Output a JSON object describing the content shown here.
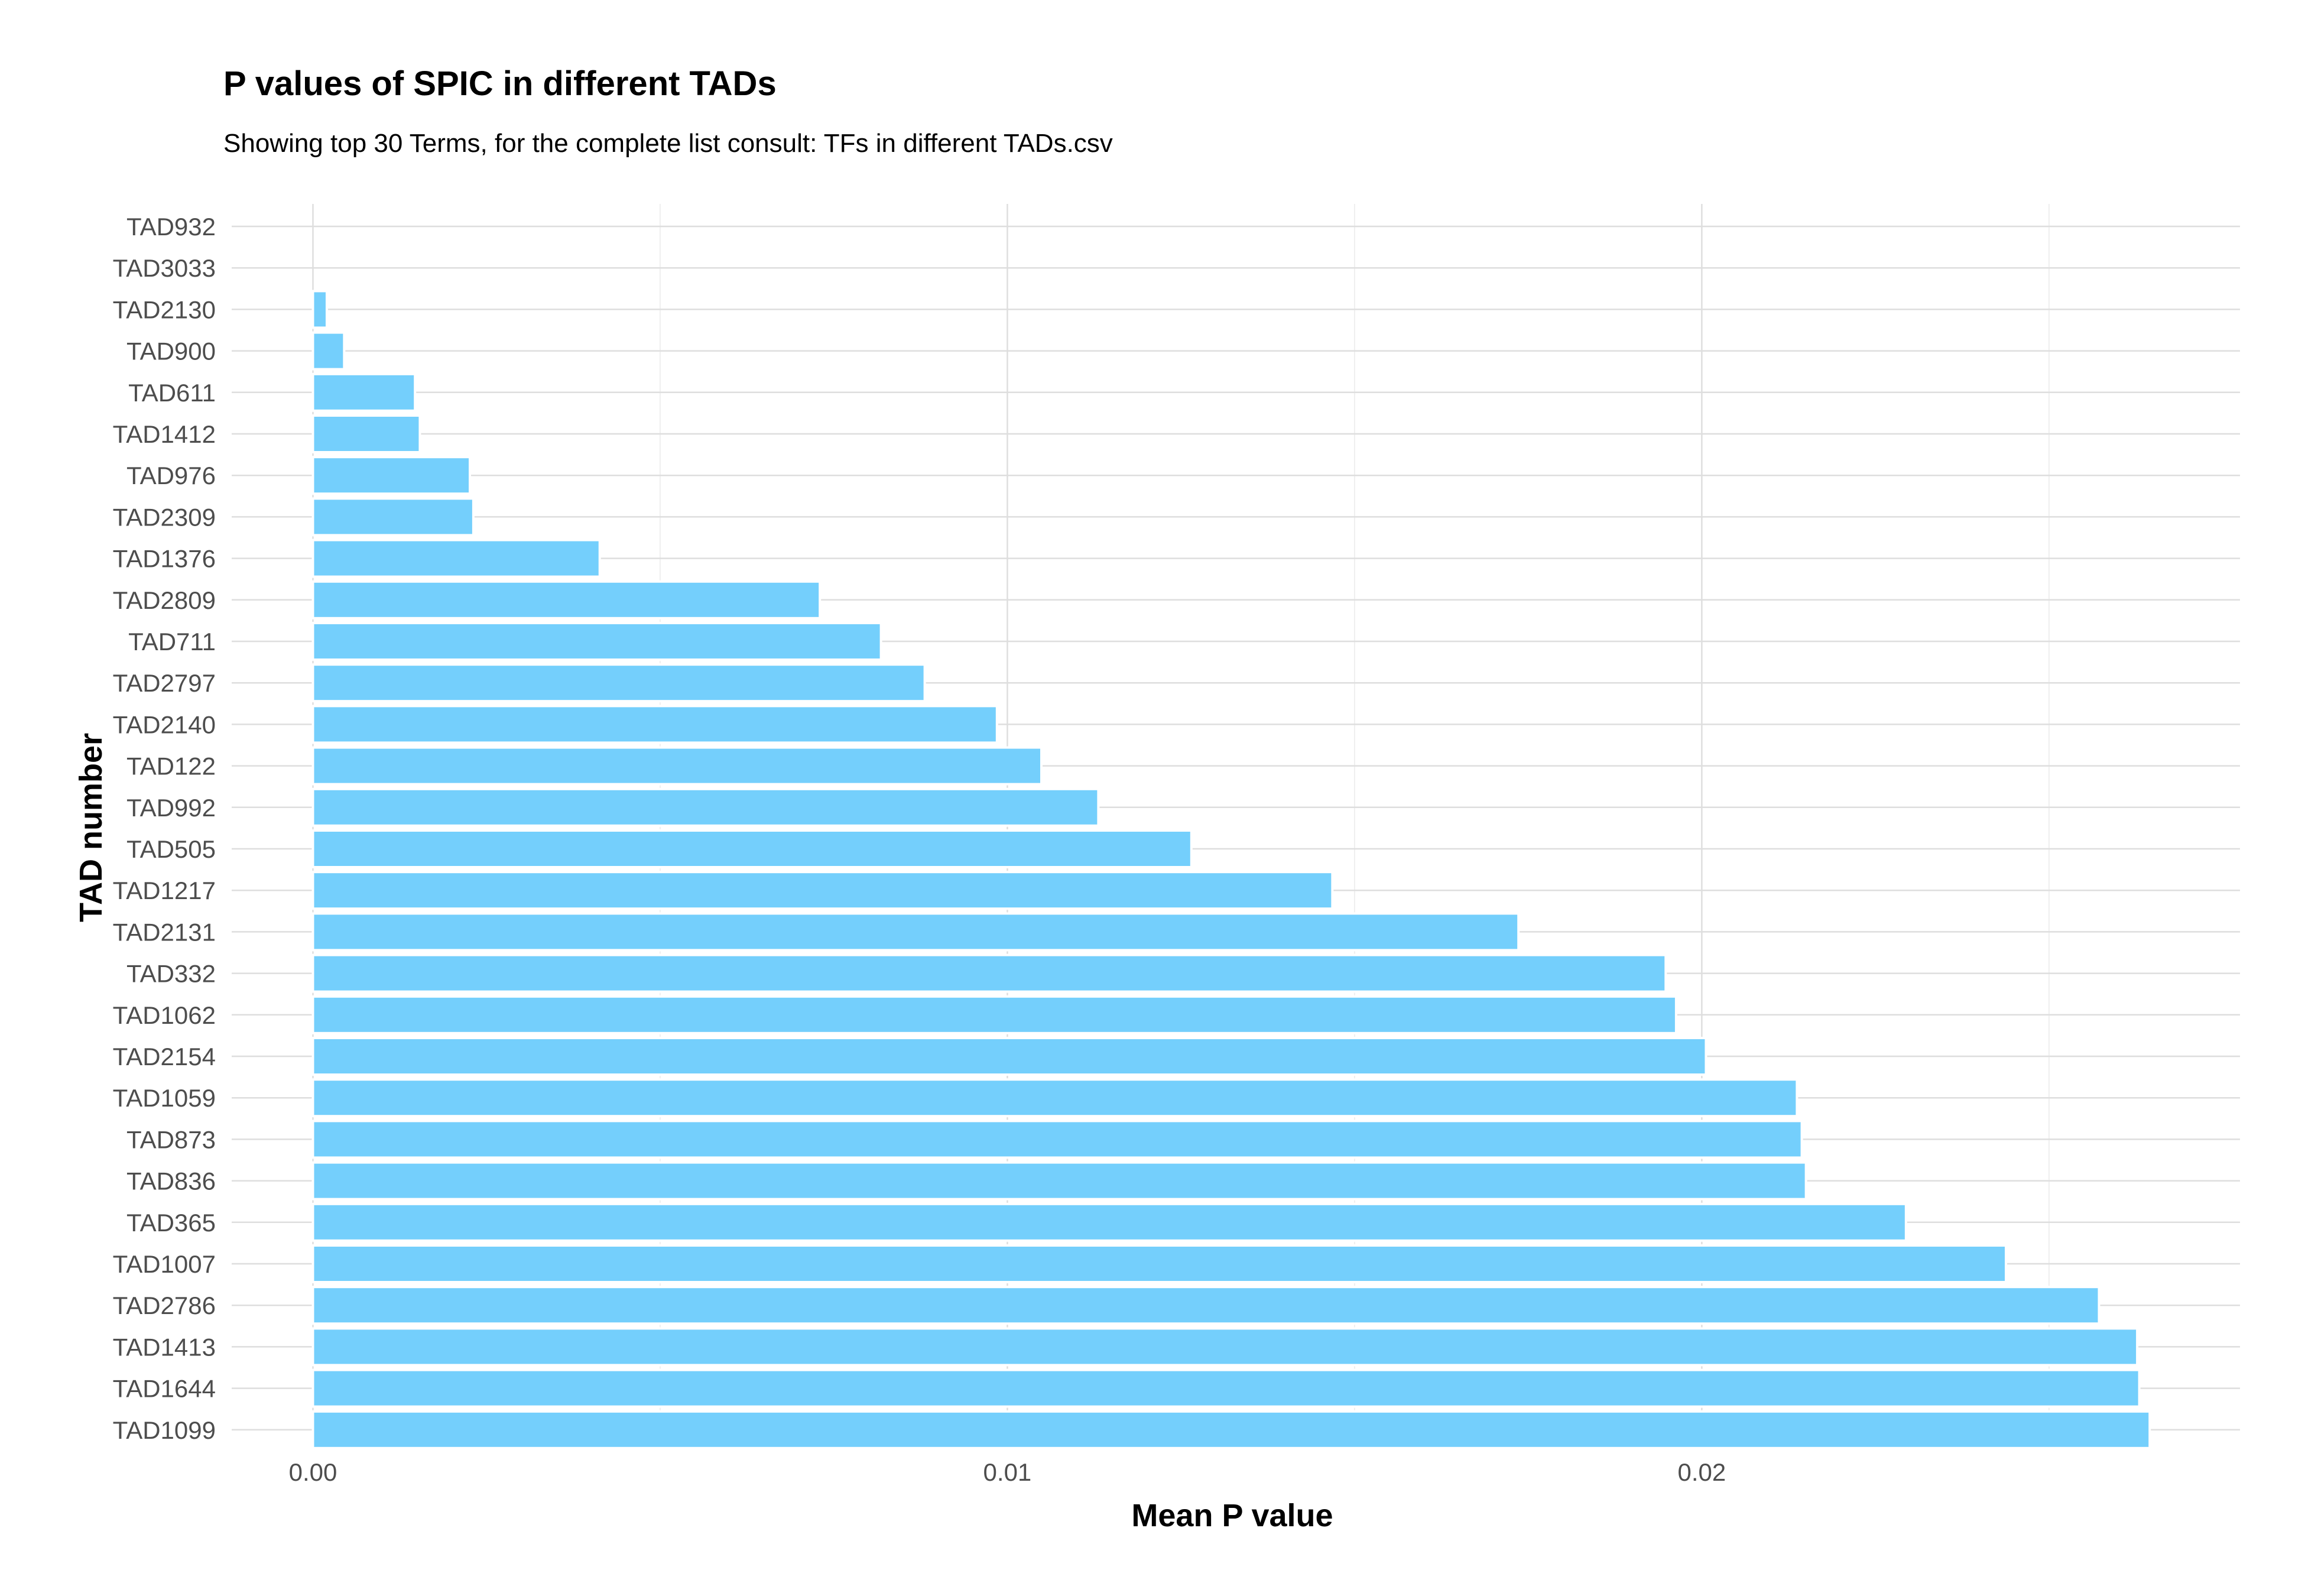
{
  "chart_data": {
    "type": "bar",
    "orientation": "horizontal",
    "title": "P values of SPIC in different TADs",
    "subtitle": "Showing top 30 Terms, for the complete list consult: TFs in different TADs.csv",
    "xlabel": "Mean P value",
    "ylabel": "TAD number",
    "xlim": [
      -0.00117,
      0.02775
    ],
    "x_ticks": [
      0.0,
      0.01,
      0.02
    ],
    "x_tick_labels": [
      "0.00",
      "0.01",
      "0.02"
    ],
    "grid": true,
    "bar_color": "#74CFFC",
    "categories": [
      "TAD932",
      "TAD3033",
      "TAD2130",
      "TAD900",
      "TAD611",
      "TAD1412",
      "TAD976",
      "TAD2309",
      "TAD1376",
      "TAD2809",
      "TAD711",
      "TAD2797",
      "TAD2140",
      "TAD122",
      "TAD992",
      "TAD505",
      "TAD1217",
      "TAD2131",
      "TAD332",
      "TAD1062",
      "TAD2154",
      "TAD1059",
      "TAD873",
      "TAD836",
      "TAD365",
      "TAD1007",
      "TAD2786",
      "TAD1413",
      "TAD1644",
      "TAD1099"
    ],
    "values": [
      0.0,
      0.0,
      0.0002,
      0.00045,
      0.00147,
      0.00154,
      0.00226,
      0.00231,
      0.00413,
      0.0073,
      0.00818,
      0.00881,
      0.00985,
      0.01049,
      0.01131,
      0.01265,
      0.01468,
      0.01736,
      0.01948,
      0.01963,
      0.02006,
      0.02137,
      0.02144,
      0.0215,
      0.02294,
      0.02438,
      0.02572,
      0.02627,
      0.0263,
      0.02645
    ]
  }
}
